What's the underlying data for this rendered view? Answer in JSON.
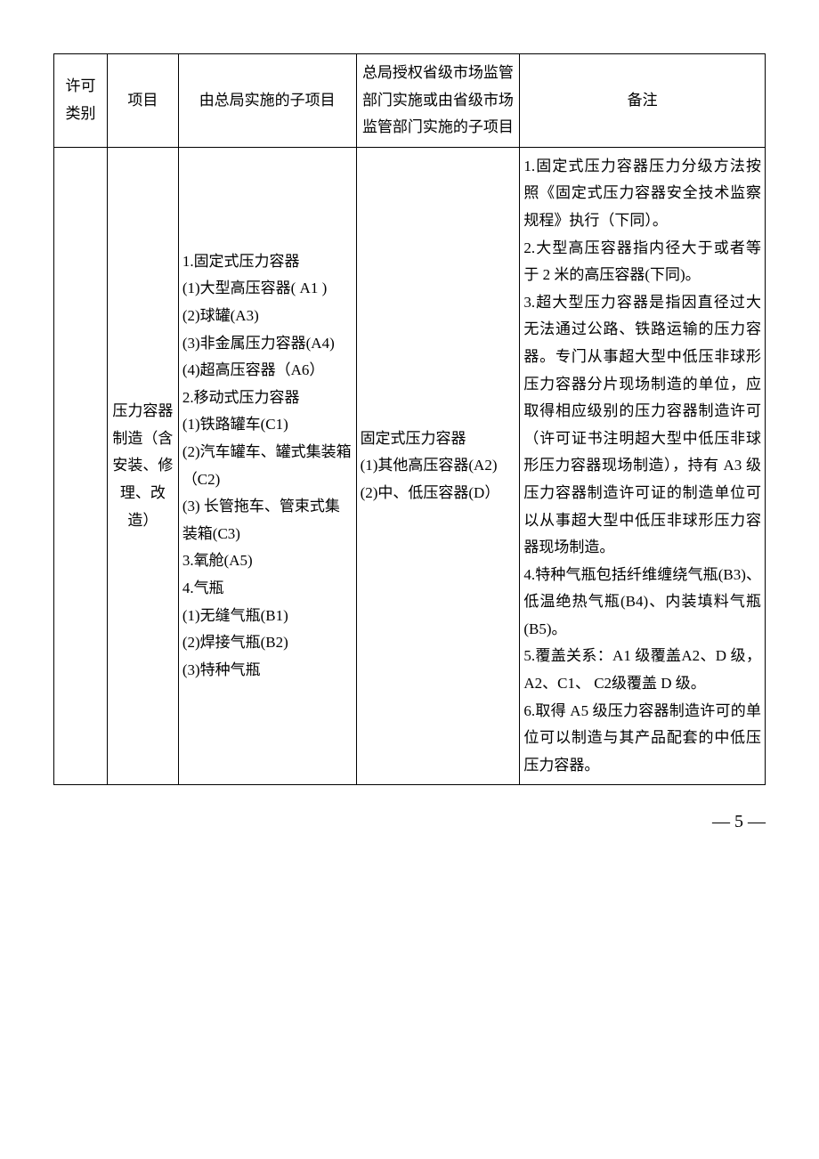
{
  "table": {
    "headers": {
      "h1": "许可类别",
      "h2": "项目",
      "h3": "由总局实施的子项目",
      "h4": "总局授权省级市场监管部门实施或由省级市场监管部门实施的子项目",
      "h5": "备注"
    },
    "row": {
      "c1": "",
      "c2": "压力容器制造（含安装、修理、改造）",
      "c3": "1.固定式压力容器\n(1)大型高压容器( A1 )\n(2)球罐(A3)\n(3)非金属压力容器(A4)\n(4)超高压容器（A6）\n2.移动式压力容器\n(1)铁路罐车(C1)\n(2)汽车罐车、罐式集装箱（C2)\n(3) 长管拖车、管束式集装箱(C3)\n3.氧舱(A5)\n4.气瓶\n(1)无缝气瓶(B1)\n(2)焊接气瓶(B2)\n(3)特种气瓶",
      "c4": "固定式压力容器\n(1)其他高压容器(A2)\n(2)中、低压容器(D）",
      "c5": "1.固定式压力容器压力分级方法按照《固定式压力容器安全技术监察规程》执行（下同）。\n2.大型高压容器指内径大于或者等于 2 米的高压容器(下同)。\n3.超大型压力容器是指因直径过大无法通过公路、铁路运输的压力容器。专门从事超大型中低压非球形压力容器分片现场制造的单位，应取得相应级别的压力容器制造许可（许可证书注明超大型中低压非球形压力容器现场制造），持有 A3 级压力容器制造许可证的制造单位可以从事超大型中低压非球形压力容器现场制造。\n4.特种气瓶包括纤维缠绕气瓶(B3)、低温绝热气瓶(B4)、内装填料气瓶(B5)。\n5.覆盖关系：A1 级覆盖A2、D 级，A2、C1、 C2级覆盖 D 级。\n6.取得 A5 级压力容器制造许可的单位可以制造与其产品配套的中低压压力容器。"
    }
  },
  "footer": {
    "page": "— 5 —"
  }
}
